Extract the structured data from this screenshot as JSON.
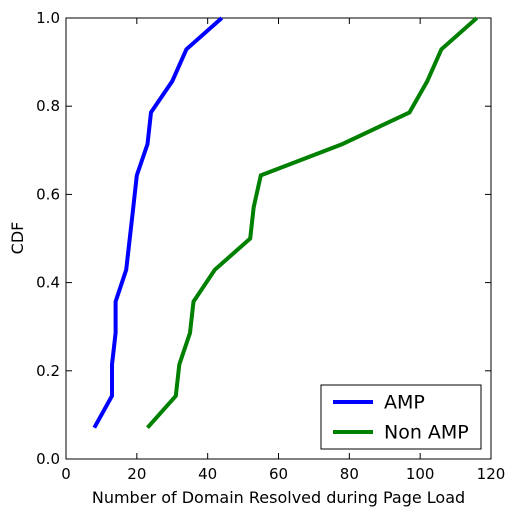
{
  "chart_data": {
    "type": "line",
    "xlabel": "Number of Domain Resolved during Page Load",
    "ylabel": "CDF",
    "xlim": [
      0,
      120
    ],
    "ylim": [
      0.0,
      1.0
    ],
    "x_ticks": [
      0,
      20,
      40,
      60,
      80,
      100,
      120
    ],
    "y_ticks": [
      0.0,
      0.2,
      0.4,
      0.6,
      0.8,
      1.0
    ],
    "x_tick_labels": [
      "0",
      "20",
      "40",
      "60",
      "80",
      "100",
      "120"
    ],
    "y_tick_labels": [
      "0.0",
      "0.2",
      "0.4",
      "0.6",
      "0.8",
      "1.0"
    ],
    "grid": false,
    "legend_position": "bottom-right",
    "series": [
      {
        "name": "AMP",
        "color": "#0000ff",
        "x": [
          8,
          13,
          13,
          14,
          14,
          17,
          19,
          20,
          23,
          24,
          30,
          34,
          44
        ],
        "y": [
          0.071,
          0.143,
          0.214,
          0.286,
          0.357,
          0.429,
          0.571,
          0.643,
          0.714,
          0.786,
          0.857,
          0.929,
          1.0
        ]
      },
      {
        "name": "Non AMP",
        "color": "#008000",
        "x": [
          23,
          31,
          32,
          35,
          36,
          42,
          52,
          53,
          55,
          78,
          97,
          102,
          106,
          116
        ],
        "y": [
          0.071,
          0.143,
          0.214,
          0.286,
          0.357,
          0.429,
          0.5,
          0.571,
          0.643,
          0.714,
          0.786,
          0.857,
          0.929,
          1.0
        ]
      }
    ]
  }
}
